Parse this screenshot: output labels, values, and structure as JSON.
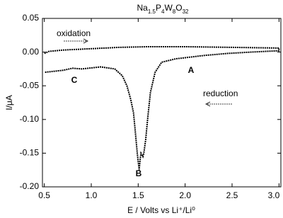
{
  "chart_data": {
    "type": "line",
    "title": "Na1.5P4W8O32",
    "x_label": "E / Volts vs Li⁺/Li⁰",
    "y_label": "I/μA",
    "annotations": [
      "oxidation",
      "reduction",
      "A",
      "B",
      "C"
    ],
    "xlim": [
      0.48,
      3.02
    ],
    "ylim": [
      -0.2,
      0.05
    ],
    "xticks": [
      0.5,
      {
        "value": 1,
        "label": "1.0"
      },
      1.5,
      {
        "value": 2,
        "label": "2.0"
      },
      2.5,
      {
        "value": 3,
        "label": "3.0"
      }
    ],
    "yticks": [
      0.05,
      {
        "value": 0,
        "label": "0.00"
      },
      -0.05,
      {
        "value": -0.1,
        "label": "-0.10"
      },
      -0.15,
      {
        "value": -0.2,
        "label": "-0.20"
      }
    ],
    "grid": false,
    "series": [
      {
        "color": "#000000",
        "x": [
          0.5,
          0.55,
          0.7,
          1.0,
          1.3,
          1.6,
          2.0,
          2.5,
          3.0,
          3.0,
          2.7,
          2.45,
          2.2,
          1.9,
          1.75,
          1.68,
          1.63,
          1.6,
          1.58,
          1.56,
          1.55,
          1.53,
          1.52,
          1.51,
          1.49,
          1.47,
          1.45,
          1.42,
          1.38,
          1.33,
          1.25,
          1.1,
          0.9,
          0.8,
          0.7,
          0.5
        ],
        "values": [
          -0.002,
          0.001,
          0.003,
          0.005,
          0.007,
          0.008,
          0.008,
          0.007,
          0.006,
          0.002,
          0.0,
          -0.002,
          -0.005,
          -0.01,
          -0.015,
          -0.03,
          -0.06,
          -0.1,
          -0.13,
          -0.15,
          -0.155,
          -0.15,
          -0.16,
          -0.175,
          -0.15,
          -0.12,
          -0.09,
          -0.07,
          -0.05,
          -0.035,
          -0.025,
          -0.022,
          -0.025,
          -0.024,
          -0.027,
          -0.03
        ]
      }
    ]
  }
}
